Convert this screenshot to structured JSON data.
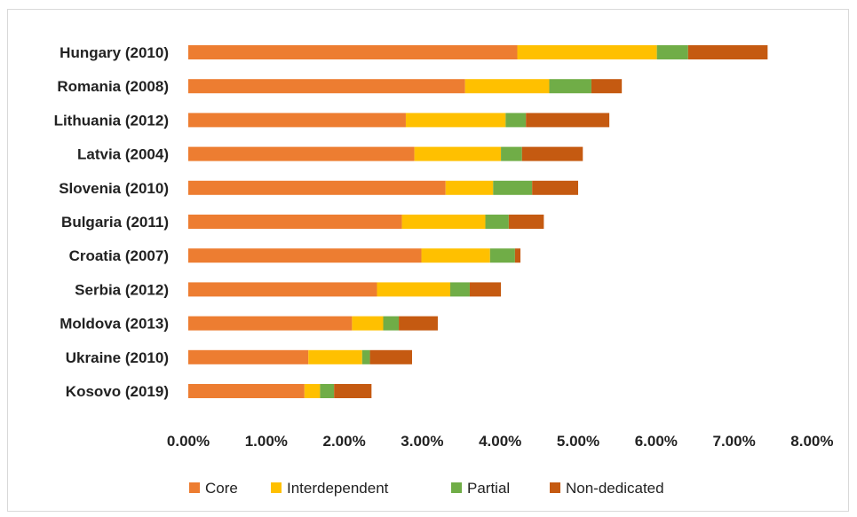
{
  "chart_data": {
    "type": "bar",
    "orientation": "horizontal",
    "stacked": true,
    "categories": [
      "Hungary (2010)",
      "Romania (2008)",
      "Lithuania (2012)",
      "Latvia (2004)",
      "Slovenia (2010)",
      "Bulgaria (2011)",
      "Croatia (2007)",
      "Serbia (2012)",
      "Moldova (2013)",
      "Ukraine (2010)",
      "Kosovo (2019)"
    ],
    "series": [
      {
        "name": "Core",
        "color": "#ed7d31",
        "values": [
          4.22,
          3.55,
          2.79,
          2.9,
          3.3,
          2.74,
          2.99,
          2.42,
          2.1,
          1.54,
          1.49
        ]
      },
      {
        "name": "Interdependent",
        "color": "#ffc000",
        "values": [
          1.79,
          1.08,
          1.28,
          1.11,
          0.61,
          1.07,
          0.88,
          0.94,
          0.4,
          0.69,
          0.2
        ]
      },
      {
        "name": "Partial",
        "color": "#70ad47",
        "values": [
          0.4,
          0.54,
          0.26,
          0.27,
          0.5,
          0.3,
          0.32,
          0.25,
          0.2,
          0.1,
          0.18
        ]
      },
      {
        "name": "Non-dedicated",
        "color": "#c55a11",
        "values": [
          1.02,
          0.39,
          1.07,
          0.78,
          0.59,
          0.45,
          0.07,
          0.4,
          0.5,
          0.54,
          0.48
        ]
      }
    ],
    "xlim": [
      0,
      8
    ],
    "xticks": [
      "0.00%",
      "1.00%",
      "2.00%",
      "3.00%",
      "4.00%",
      "5.00%",
      "6.00%",
      "7.00%",
      "8.00%"
    ],
    "grid": false,
    "legend_position": "bottom"
  }
}
